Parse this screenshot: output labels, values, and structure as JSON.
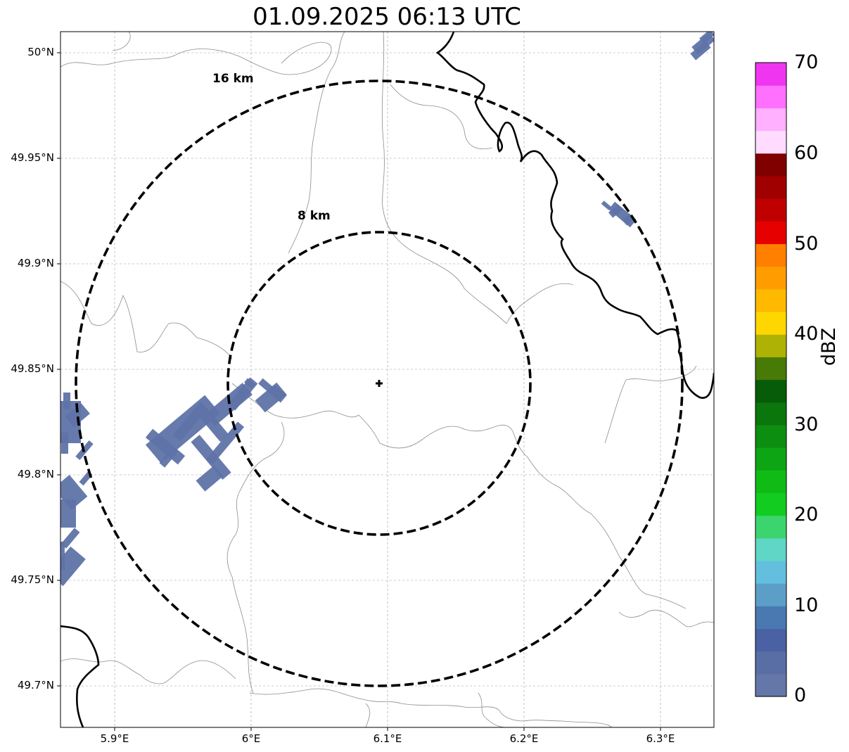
{
  "title": "01.09.2025 06:13 UTC",
  "map": {
    "lat_ticks": [
      "50°N",
      "49.95°N",
      "49.9°N",
      "49.85°N",
      "49.8°N",
      "49.75°N",
      "49.7°N"
    ],
    "lon_ticks": [
      "5.9°E",
      "6°E",
      "6.1°E",
      "6.2°E",
      "6.3°E"
    ],
    "ring_labels": [
      "16 km",
      "8 km"
    ],
    "radar_site": {
      "lon": 6.095,
      "lat": 49.843
    }
  },
  "colorbar": {
    "label": "dBZ",
    "tick_labels": [
      "0",
      "10",
      "20",
      "30",
      "40",
      "50",
      "60",
      "70"
    ],
    "colors": [
      "#6577a8",
      "#5a6ea6",
      "#4a62a3",
      "#4a79b2",
      "#5b9fc8",
      "#63bfdd",
      "#5fd6c6",
      "#3cd46e",
      "#12cc1f",
      "#10bb16",
      "#0ea514",
      "#0c8e10",
      "#0a760c",
      "#065c08",
      "#487a06",
      "#aeb204",
      "#ffd700",
      "#ffb900",
      "#ff9d00",
      "#ff7f00",
      "#e60000",
      "#c00000",
      "#a00000",
      "#800000",
      "#ffdcff",
      "#ffb0ff",
      "#ff70ff",
      "#f035f0"
    ]
  },
  "echo_color": "#5f73a8"
}
